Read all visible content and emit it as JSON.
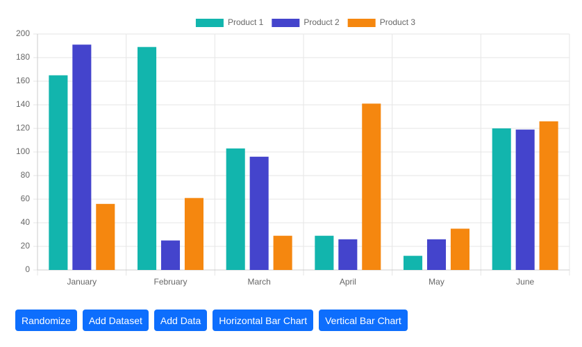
{
  "chart_data": {
    "type": "bar",
    "categories": [
      "January",
      "February",
      "March",
      "April",
      "May",
      "June"
    ],
    "series": [
      {
        "name": "Product 1",
        "color": "#12b5ad",
        "values": [
          165,
          189,
          103,
          29,
          12,
          120
        ]
      },
      {
        "name": "Product 2",
        "color": "#4444cc",
        "values": [
          191,
          25,
          96,
          26,
          26,
          119
        ]
      },
      {
        "name": "Product 3",
        "color": "#f5870f",
        "values": [
          56,
          61,
          29,
          141,
          35,
          126
        ]
      }
    ],
    "ylim": [
      0,
      200
    ],
    "yticks": [
      0,
      20,
      40,
      60,
      80,
      100,
      120,
      140,
      160,
      180,
      200
    ],
    "grid": true,
    "legend": "top"
  },
  "buttons": [
    "Randomize",
    "Add Dataset",
    "Add Data",
    "Horizontal Bar Chart",
    "Vertical Bar Chart"
  ]
}
